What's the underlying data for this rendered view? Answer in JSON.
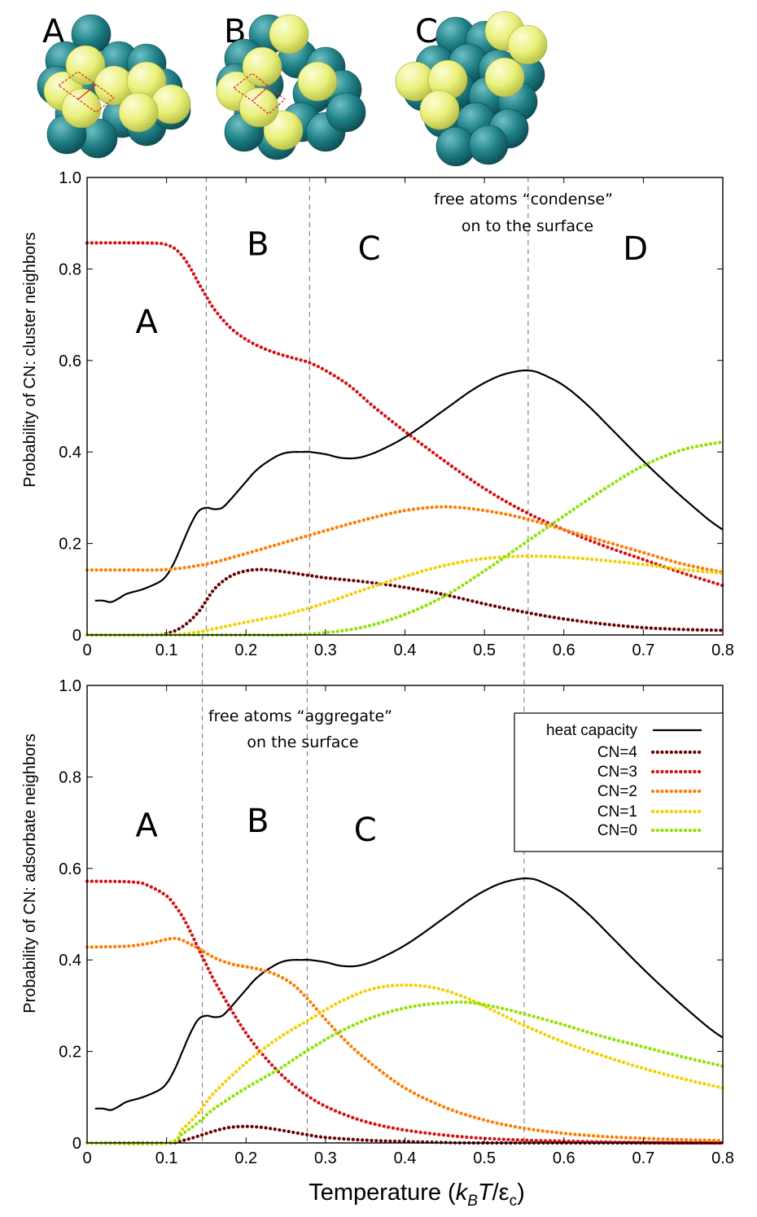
{
  "clusters": [
    {
      "label": "A"
    },
    {
      "label": "B"
    },
    {
      "label": "C"
    }
  ],
  "colors": {
    "heat_capacity": "#000000",
    "CN4": "#6b0000",
    "CN3": "#d61010",
    "CN2": "#ff7b00",
    "CN1": "#f2d000",
    "CN0": "#8ee400",
    "guide": "#888888",
    "teal": "#1e7f85",
    "yellow": "#ecf27a"
  },
  "xlabel_parts": {
    "a": "Temperature (",
    "k": "k",
    "b": "B",
    "t": "T",
    "slash": "/ε",
    "c": "c",
    "close": ")"
  },
  "legend": {
    "entries": [
      "heat capacity",
      "CN=4",
      "CN=3",
      "CN=2",
      "CN=1",
      "CN=0"
    ]
  },
  "chart_data": [
    {
      "type": "line",
      "title": "",
      "xlabel": "Temperature (kBT/εc)",
      "ylabel": "Probability of CN: cluster  neighbors",
      "xlim": [
        0,
        0.8
      ],
      "ylim": [
        0,
        1.0
      ],
      "xticks": [
        "0",
        "0.1",
        "0.2",
        "0.3",
        "0.4",
        "0.5",
        "0.6",
        "0.7",
        "0.8"
      ],
      "yticks": [
        "0",
        "0.2",
        "0.4",
        "0.6",
        "0.8",
        "1.0"
      ],
      "vlines": [
        0.15,
        0.28,
        0.555
      ],
      "regions": [
        {
          "label": "A",
          "x": 0.075,
          "y": 0.66
        },
        {
          "label": "B",
          "x": 0.215,
          "y": 0.83
        },
        {
          "label": "C",
          "x": 0.355,
          "y": 0.82
        },
        {
          "label": "D",
          "x": 0.69,
          "y": 0.82
        }
      ],
      "annotation": [
        "free atoms “condense”",
        "on to the surface"
      ],
      "series": [
        {
          "name": "heat capacity",
          "key": "heat_capacity",
          "style": "solid",
          "x": [
            0.01,
            0.02,
            0.03,
            0.04,
            0.05,
            0.07,
            0.09,
            0.1,
            0.11,
            0.12,
            0.13,
            0.14,
            0.15,
            0.16,
            0.17,
            0.18,
            0.19,
            0.2,
            0.21,
            0.22,
            0.23,
            0.24,
            0.25,
            0.26,
            0.27,
            0.28,
            0.3,
            0.32,
            0.34,
            0.36,
            0.38,
            0.4,
            0.42,
            0.44,
            0.46,
            0.48,
            0.5,
            0.52,
            0.54,
            0.555,
            0.57,
            0.6,
            0.63,
            0.66,
            0.7,
            0.74,
            0.78,
            0.8
          ],
          "y": [
            0.075,
            0.075,
            0.072,
            0.08,
            0.09,
            0.1,
            0.115,
            0.13,
            0.16,
            0.2,
            0.24,
            0.27,
            0.278,
            0.275,
            0.278,
            0.295,
            0.315,
            0.335,
            0.355,
            0.37,
            0.382,
            0.392,
            0.398,
            0.4,
            0.4,
            0.4,
            0.395,
            0.387,
            0.387,
            0.397,
            0.413,
            0.432,
            0.455,
            0.48,
            0.505,
            0.53,
            0.551,
            0.567,
            0.576,
            0.578,
            0.572,
            0.545,
            0.502,
            0.45,
            0.38,
            0.315,
            0.255,
            0.23
          ]
        },
        {
          "name": "CN=4",
          "key": "CN4",
          "style": "dotted",
          "x": [
            0.0,
            0.08,
            0.1,
            0.12,
            0.14,
            0.16,
            0.18,
            0.2,
            0.22,
            0.24,
            0.26,
            0.28,
            0.3,
            0.35,
            0.4,
            0.45,
            0.5,
            0.55,
            0.6,
            0.65,
            0.7,
            0.75,
            0.8
          ],
          "y": [
            0.0,
            0.0,
            0.003,
            0.018,
            0.05,
            0.1,
            0.128,
            0.14,
            0.143,
            0.14,
            0.135,
            0.13,
            0.125,
            0.116,
            0.104,
            0.088,
            0.068,
            0.05,
            0.035,
            0.024,
            0.016,
            0.012,
            0.01
          ]
        },
        {
          "name": "CN=3",
          "key": "CN3",
          "style": "dotted",
          "x": [
            0.0,
            0.06,
            0.09,
            0.1,
            0.11,
            0.12,
            0.13,
            0.14,
            0.15,
            0.16,
            0.18,
            0.2,
            0.22,
            0.24,
            0.26,
            0.28,
            0.3,
            0.33,
            0.36,
            0.4,
            0.45,
            0.5,
            0.55,
            0.6,
            0.65,
            0.7,
            0.75,
            0.8
          ],
          "y": [
            0.857,
            0.857,
            0.856,
            0.853,
            0.845,
            0.828,
            0.802,
            0.77,
            0.74,
            0.712,
            0.672,
            0.646,
            0.628,
            0.615,
            0.605,
            0.595,
            0.578,
            0.545,
            0.5,
            0.445,
            0.38,
            0.32,
            0.27,
            0.23,
            0.195,
            0.165,
            0.135,
            0.108
          ]
        },
        {
          "name": "CN=2",
          "key": "CN2",
          "style": "dotted",
          "x": [
            0.0,
            0.05,
            0.1,
            0.15,
            0.2,
            0.25,
            0.3,
            0.35,
            0.4,
            0.45,
            0.5,
            0.55,
            0.6,
            0.65,
            0.7,
            0.75,
            0.8
          ],
          "y": [
            0.142,
            0.142,
            0.143,
            0.155,
            0.178,
            0.203,
            0.228,
            0.252,
            0.272,
            0.28,
            0.272,
            0.255,
            0.23,
            0.205,
            0.18,
            0.155,
            0.137
          ]
        },
        {
          "name": "CN=1",
          "key": "CN1",
          "style": "dotted",
          "x": [
            0.0,
            0.1,
            0.13,
            0.15,
            0.2,
            0.25,
            0.3,
            0.35,
            0.4,
            0.45,
            0.5,
            0.55,
            0.6,
            0.65,
            0.7,
            0.75,
            0.8
          ],
          "y": [
            0.0,
            0.0,
            0.004,
            0.01,
            0.028,
            0.045,
            0.07,
            0.1,
            0.128,
            0.152,
            0.167,
            0.172,
            0.17,
            0.163,
            0.154,
            0.143,
            0.135
          ]
        },
        {
          "name": "CN=0",
          "key": "CN0",
          "style": "dotted",
          "x": [
            0.0,
            0.2,
            0.25,
            0.3,
            0.35,
            0.4,
            0.45,
            0.5,
            0.55,
            0.6,
            0.65,
            0.7,
            0.75,
            0.8
          ],
          "y": [
            0.0,
            0.0,
            0.0,
            0.005,
            0.018,
            0.045,
            0.085,
            0.14,
            0.2,
            0.26,
            0.318,
            0.37,
            0.405,
            0.422
          ]
        }
      ]
    },
    {
      "type": "line",
      "title": "",
      "xlabel": "Temperature (kBT/εc)",
      "ylabel": "Probability of CN: adsorbate neighbors",
      "xlim": [
        0,
        0.8
      ],
      "ylim": [
        0,
        1.0
      ],
      "xticks": [
        "0",
        "0.1",
        "0.2",
        "0.3",
        "0.4",
        "0.5",
        "0.6",
        "0.7",
        "0.8"
      ],
      "yticks": [
        "0",
        "0.2",
        "0.4",
        "0.6",
        "0.8",
        "1.0"
      ],
      "vlines": [
        0.145,
        0.277,
        0.55
      ],
      "regions": [
        {
          "label": "A",
          "x": 0.075,
          "y": 0.67
        },
        {
          "label": "B",
          "x": 0.215,
          "y": 0.68
        },
        {
          "label": "C",
          "x": 0.35,
          "y": 0.66
        }
      ],
      "annotation": [
        "free atoms “aggregate”",
        "on the surface"
      ],
      "series": [
        {
          "name": "heat capacity",
          "key": "heat_capacity",
          "style": "solid",
          "x": [
            0.01,
            0.02,
            0.03,
            0.04,
            0.05,
            0.07,
            0.09,
            0.1,
            0.11,
            0.12,
            0.13,
            0.14,
            0.15,
            0.16,
            0.17,
            0.18,
            0.19,
            0.2,
            0.21,
            0.22,
            0.23,
            0.24,
            0.25,
            0.26,
            0.27,
            0.28,
            0.3,
            0.32,
            0.34,
            0.36,
            0.38,
            0.4,
            0.42,
            0.44,
            0.46,
            0.48,
            0.5,
            0.52,
            0.54,
            0.555,
            0.57,
            0.6,
            0.63,
            0.66,
            0.7,
            0.74,
            0.78,
            0.8
          ],
          "y": [
            0.075,
            0.075,
            0.072,
            0.08,
            0.09,
            0.1,
            0.115,
            0.13,
            0.16,
            0.2,
            0.24,
            0.27,
            0.278,
            0.275,
            0.278,
            0.295,
            0.315,
            0.335,
            0.355,
            0.37,
            0.382,
            0.392,
            0.398,
            0.4,
            0.4,
            0.4,
            0.395,
            0.387,
            0.387,
            0.397,
            0.413,
            0.432,
            0.455,
            0.48,
            0.505,
            0.53,
            0.551,
            0.567,
            0.576,
            0.578,
            0.572,
            0.545,
            0.502,
            0.45,
            0.38,
            0.315,
            0.255,
            0.23
          ]
        },
        {
          "name": "CN=4",
          "key": "CN4",
          "style": "dotted",
          "x": [
            0.0,
            0.1,
            0.12,
            0.14,
            0.16,
            0.18,
            0.2,
            0.22,
            0.24,
            0.26,
            0.28,
            0.3,
            0.35,
            0.4,
            0.45,
            0.5,
            0.8
          ],
          "y": [
            0.0,
            0.0,
            0.005,
            0.015,
            0.026,
            0.034,
            0.036,
            0.034,
            0.029,
            0.023,
            0.017,
            0.012,
            0.006,
            0.003,
            0.001,
            0.0,
            0.0
          ]
        },
        {
          "name": "CN=3",
          "key": "CN3",
          "style": "dotted",
          "x": [
            0.0,
            0.06,
            0.08,
            0.1,
            0.11,
            0.12,
            0.13,
            0.14,
            0.15,
            0.16,
            0.18,
            0.2,
            0.22,
            0.24,
            0.26,
            0.28,
            0.3,
            0.33,
            0.36,
            0.4,
            0.45,
            0.5,
            0.55,
            0.6,
            0.65,
            0.7,
            0.75,
            0.8
          ],
          "y": [
            0.572,
            0.57,
            0.56,
            0.54,
            0.52,
            0.495,
            0.462,
            0.425,
            0.39,
            0.355,
            0.295,
            0.24,
            0.195,
            0.157,
            0.125,
            0.1,
            0.08,
            0.058,
            0.042,
            0.028,
            0.017,
            0.01,
            0.006,
            0.004,
            0.002,
            0.001,
            0.0,
            0.0
          ]
        },
        {
          "name": "CN=2",
          "key": "CN2",
          "style": "dotted",
          "x": [
            0.0,
            0.05,
            0.08,
            0.1,
            0.11,
            0.12,
            0.14,
            0.16,
            0.18,
            0.2,
            0.22,
            0.24,
            0.26,
            0.28,
            0.3,
            0.33,
            0.36,
            0.4,
            0.45,
            0.5,
            0.55,
            0.6,
            0.65,
            0.7,
            0.75,
            0.8
          ],
          "y": [
            0.428,
            0.43,
            0.437,
            0.445,
            0.447,
            0.443,
            0.425,
            0.405,
            0.392,
            0.385,
            0.378,
            0.366,
            0.345,
            0.31,
            0.27,
            0.215,
            0.17,
            0.12,
            0.078,
            0.05,
            0.032,
            0.021,
            0.014,
            0.01,
            0.007,
            0.005
          ]
        },
        {
          "name": "CN=1",
          "key": "CN1",
          "style": "dotted",
          "x": [
            0.0,
            0.1,
            0.12,
            0.14,
            0.16,
            0.2,
            0.24,
            0.28,
            0.32,
            0.36,
            0.4,
            0.44,
            0.48,
            0.52,
            0.55,
            0.6,
            0.65,
            0.7,
            0.75,
            0.8
          ],
          "y": [
            0.0,
            0.0,
            0.03,
            0.065,
            0.11,
            0.175,
            0.228,
            0.27,
            0.31,
            0.337,
            0.345,
            0.338,
            0.315,
            0.282,
            0.257,
            0.22,
            0.19,
            0.163,
            0.14,
            0.12
          ]
        },
        {
          "name": "CN=0",
          "key": "CN0",
          "style": "dotted",
          "x": [
            0.0,
            0.1,
            0.12,
            0.14,
            0.16,
            0.2,
            0.24,
            0.28,
            0.32,
            0.36,
            0.4,
            0.44,
            0.48,
            0.52,
            0.55,
            0.6,
            0.65,
            0.7,
            0.75,
            0.8
          ],
          "y": [
            0.0,
            0.0,
            0.02,
            0.045,
            0.075,
            0.12,
            0.16,
            0.205,
            0.245,
            0.275,
            0.295,
            0.305,
            0.307,
            0.295,
            0.282,
            0.258,
            0.232,
            0.21,
            0.188,
            0.168
          ]
        }
      ]
    }
  ]
}
